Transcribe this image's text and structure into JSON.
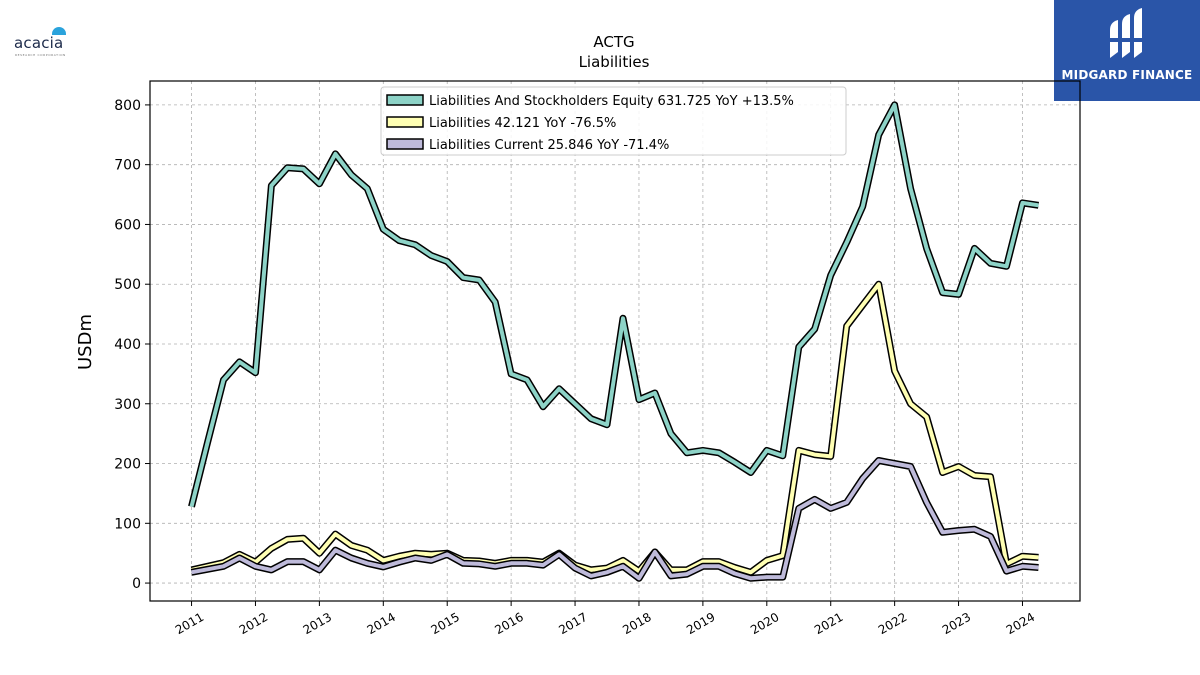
{
  "branding": {
    "left_logo_text": "acacia",
    "left_logo_tagline": "RESEARCH CORPORATION",
    "right_logo_text": "MIDGARD FINANCE"
  },
  "colors": {
    "equity": "#8dd3c7",
    "liabilities": "#ffffb3",
    "current": "#bebada",
    "brand_blue": "#2a55a8"
  },
  "chart_data": {
    "type": "line",
    "title": "ACTG",
    "subtitle": "Liabilities",
    "xlabel": "",
    "ylabel": "USDm",
    "x_ticks": [
      "2011",
      "2012",
      "2013",
      "2014",
      "2015",
      "2016",
      "2017",
      "2018",
      "2019",
      "2020",
      "2021",
      "2022",
      "2023",
      "2024"
    ],
    "xlim": [
      2010.35,
      2024.9
    ],
    "ylim": [
      -30,
      840
    ],
    "y_ticks": [
      0,
      100,
      200,
      300,
      400,
      500,
      600,
      700,
      800
    ],
    "grid": true,
    "legend_position": "top-center",
    "series": [
      {
        "name": "Liabilities And Stockholders Equity",
        "legend_label": "Liabilities And Stockholders Equity  631.725 YoY +13.5%",
        "color_key": "equity",
        "x": [
          "2011-01-01",
          "2011-04-01",
          "2011-07-01",
          "2011-10-01",
          "2012-01-01",
          "2012-04-01",
          "2012-07-01",
          "2012-10-01",
          "2013-01-01",
          "2013-04-01",
          "2013-07-01",
          "2013-10-01",
          "2014-01-01",
          "2014-04-01",
          "2014-07-01",
          "2014-10-01",
          "2015-01-01",
          "2015-04-01",
          "2015-07-01",
          "2015-10-01",
          "2016-01-01",
          "2016-04-01",
          "2016-07-01",
          "2016-10-01",
          "2017-01-01",
          "2017-04-01",
          "2017-07-01",
          "2017-10-01",
          "2018-01-01",
          "2018-04-01",
          "2018-07-01",
          "2018-10-01",
          "2019-01-01",
          "2019-04-01",
          "2019-07-01",
          "2019-10-01",
          "2020-01-01",
          "2020-04-01",
          "2020-07-01",
          "2020-10-01",
          "2021-01-01",
          "2021-04-01",
          "2021-07-01",
          "2021-10-01",
          "2022-01-01",
          "2022-04-01",
          "2022-07-01",
          "2022-10-01",
          "2023-01-01",
          "2023-04-01",
          "2023-07-01",
          "2023-10-01",
          "2024-01-01",
          "2024-04-01"
        ],
        "values": [
          128,
          235,
          340,
          370,
          352,
          665,
          695,
          693,
          668,
          718,
          683,
          660,
          592,
          573,
          566,
          548,
          538,
          511,
          507,
          470,
          350,
          340,
          295,
          325,
          300,
          275,
          265,
          443,
          307,
          318,
          250,
          218,
          222,
          218,
          202,
          185,
          222,
          213,
          395,
          425,
          515,
          570,
          630,
          750,
          800,
          660,
          560,
          486,
          483,
          560,
          535,
          530,
          636,
          632
        ]
      },
      {
        "name": "Liabilities",
        "legend_label": "Liabilities  42.121 YoY -76.5%",
        "color_key": "liabilities",
        "x": [
          "2011-01-01",
          "2011-04-01",
          "2011-07-01",
          "2011-10-01",
          "2012-01-01",
          "2012-04-01",
          "2012-07-01",
          "2012-10-01",
          "2013-01-01",
          "2013-04-01",
          "2013-07-01",
          "2013-10-01",
          "2014-01-01",
          "2014-04-01",
          "2014-07-01",
          "2014-10-01",
          "2015-01-01",
          "2015-04-01",
          "2015-07-01",
          "2015-10-01",
          "2016-01-01",
          "2016-04-01",
          "2016-07-01",
          "2016-10-01",
          "2017-01-01",
          "2017-04-01",
          "2017-07-01",
          "2017-10-01",
          "2018-01-01",
          "2018-04-01",
          "2018-07-01",
          "2018-10-01",
          "2019-01-01",
          "2019-04-01",
          "2019-07-01",
          "2019-10-01",
          "2020-01-01",
          "2020-04-01",
          "2020-07-01",
          "2020-10-01",
          "2021-01-01",
          "2021-04-01",
          "2021-07-01",
          "2021-10-01",
          "2022-01-01",
          "2022-04-01",
          "2022-07-01",
          "2022-10-01",
          "2023-01-01",
          "2023-04-01",
          "2023-07-01",
          "2023-10-01",
          "2024-01-01",
          "2024-04-01"
        ],
        "values": [
          22,
          28,
          34,
          48,
          35,
          58,
          73,
          75,
          50,
          82,
          63,
          55,
          38,
          45,
          50,
          48,
          50,
          38,
          37,
          33,
          38,
          38,
          35,
          50,
          30,
          22,
          25,
          38,
          20,
          52,
          22,
          22,
          36,
          36,
          26,
          18,
          38,
          46,
          222,
          215,
          212,
          430,
          465,
          500,
          355,
          300,
          278,
          185,
          195,
          180,
          178,
          32,
          45,
          43
        ]
      },
      {
        "name": "Liabilities Current",
        "legend_label": "Liabilities Current  25.846 YoY -71.4%",
        "color_key": "current",
        "x": [
          "2011-01-01",
          "2011-04-01",
          "2011-07-01",
          "2011-10-01",
          "2012-01-01",
          "2012-04-01",
          "2012-07-01",
          "2012-10-01",
          "2013-01-01",
          "2013-04-01",
          "2013-07-01",
          "2013-10-01",
          "2014-01-01",
          "2014-04-01",
          "2014-07-01",
          "2014-10-01",
          "2015-01-01",
          "2015-04-01",
          "2015-07-01",
          "2015-10-01",
          "2016-01-01",
          "2016-04-01",
          "2016-07-01",
          "2016-10-01",
          "2017-01-01",
          "2017-04-01",
          "2017-07-01",
          "2017-10-01",
          "2018-01-01",
          "2018-04-01",
          "2018-07-01",
          "2018-10-01",
          "2019-01-01",
          "2019-04-01",
          "2019-07-01",
          "2019-10-01",
          "2020-01-01",
          "2020-04-01",
          "2020-07-01",
          "2020-10-01",
          "2021-01-01",
          "2021-04-01",
          "2021-07-01",
          "2021-10-01",
          "2022-01-01",
          "2022-04-01",
          "2022-07-01",
          "2022-10-01",
          "2023-01-01",
          "2023-04-01",
          "2023-07-01",
          "2023-10-01",
          "2024-01-01",
          "2024-04-01"
        ],
        "values": [
          18,
          23,
          28,
          42,
          28,
          22,
          36,
          36,
          22,
          55,
          42,
          33,
          27,
          35,
          42,
          38,
          48,
          33,
          32,
          28,
          33,
          33,
          30,
          48,
          25,
          12,
          18,
          28,
          8,
          52,
          12,
          15,
          28,
          28,
          16,
          8,
          10,
          10,
          125,
          140,
          125,
          135,
          175,
          205,
          200,
          195,
          135,
          85,
          88,
          90,
          78,
          20,
          28,
          26
        ]
      }
    ]
  }
}
